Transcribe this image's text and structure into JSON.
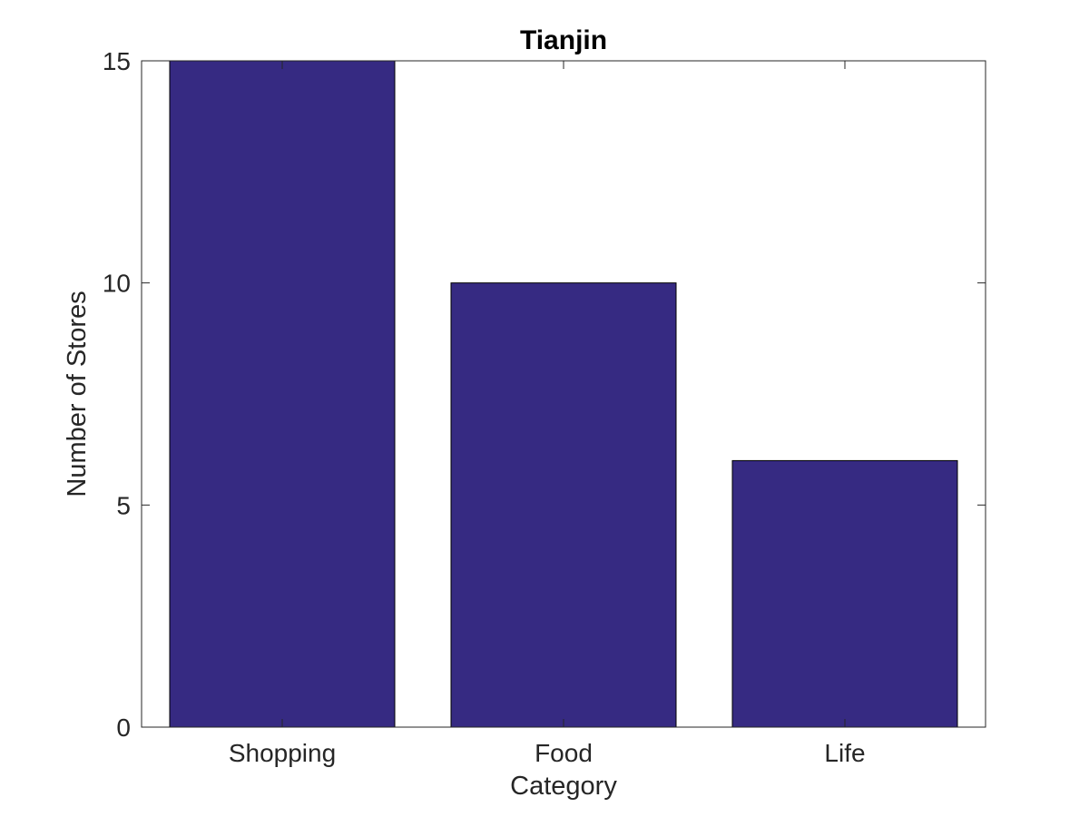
{
  "chart_data": {
    "type": "bar",
    "title": "Tianjin",
    "xlabel": "Category",
    "ylabel": "Number of Stores",
    "categories": [
      "Shopping",
      "Food",
      "Life"
    ],
    "values": [
      15,
      10,
      6
    ],
    "ylim": [
      0,
      15
    ],
    "yticks": [
      "0",
      "5",
      "10",
      "15"
    ],
    "bar_color": "#362A82",
    "grid": false,
    "legend": "none"
  }
}
